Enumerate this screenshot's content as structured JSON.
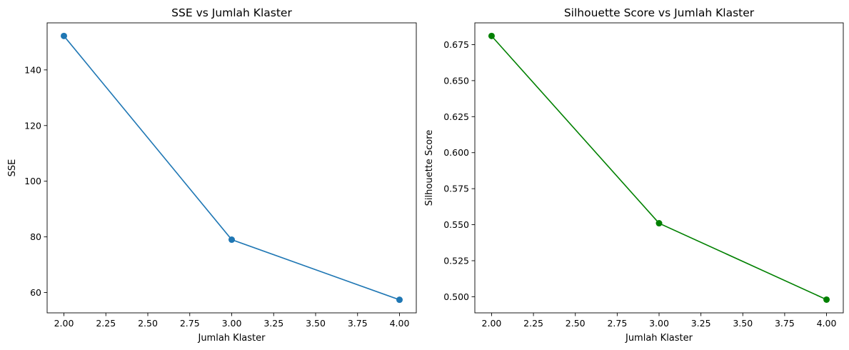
{
  "chart_data": [
    {
      "type": "line",
      "title": "SSE vs Jumlah Klaster",
      "xlabel": "Jumlah Klaster",
      "ylabel": "SSE",
      "xlim": [
        1.9,
        4.1
      ],
      "ylim": [
        52.7,
        156.9
      ],
      "x_ticks": [
        "2.00",
        "2.25",
        "2.50",
        "2.75",
        "3.00",
        "3.25",
        "3.50",
        "3.75",
        "4.00"
      ],
      "y_ticks": [
        "60",
        "80",
        "100",
        "120",
        "140"
      ],
      "grid": false,
      "series": [
        {
          "x": [
            2,
            3,
            4
          ],
          "y": [
            152.2,
            79.0,
            57.4
          ],
          "color": "#1f77b4",
          "marker": "circle"
        }
      ]
    },
    {
      "type": "line",
      "title": "Silhouette Score vs Jumlah Klaster",
      "xlabel": "Jumlah Klaster",
      "ylabel": "Silhouette Score",
      "xlim": [
        1.9,
        4.1
      ],
      "ylim": [
        0.4888,
        0.6901
      ],
      "x_ticks": [
        "2.00",
        "2.25",
        "2.50",
        "2.75",
        "3.00",
        "3.25",
        "3.50",
        "3.75",
        "4.00"
      ],
      "y_ticks": [
        "0.500",
        "0.525",
        "0.550",
        "0.575",
        "0.600",
        "0.625",
        "0.650",
        "0.675"
      ],
      "grid": false,
      "series": [
        {
          "x": [
            2,
            3,
            4
          ],
          "y": [
            0.681,
            0.551,
            0.498
          ],
          "color": "#008000",
          "marker": "circle"
        }
      ]
    }
  ]
}
